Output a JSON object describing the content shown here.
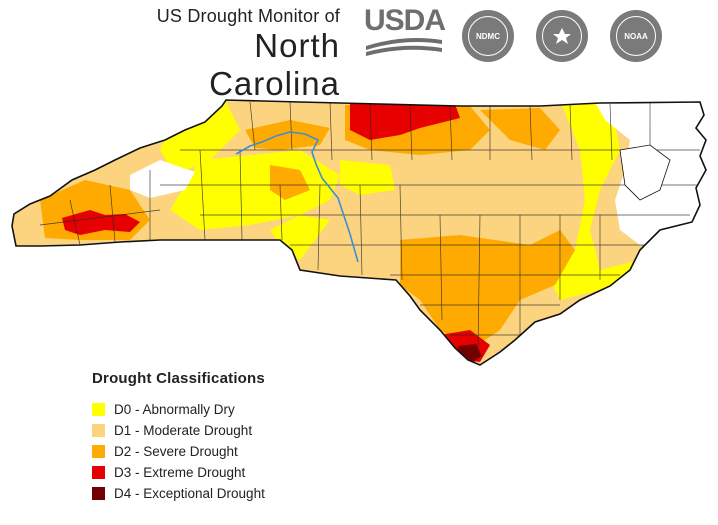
{
  "header": {
    "subtitle": "US Drought Monitor of",
    "title": "North Carolina",
    "usda_label": "USDA",
    "logos": [
      {
        "name": "ndmc-seal",
        "label": "NDMC"
      },
      {
        "name": "dept-of-commerce-seal",
        "label": ""
      },
      {
        "name": "noaa-seal",
        "label": "NOAA"
      }
    ]
  },
  "legend": {
    "title": "Drought Classifications",
    "items": [
      {
        "label": "D0 - Abnormally Dry",
        "color": "#ffff00"
      },
      {
        "label": "D1 - Moderate Drought",
        "color": "#fcd37f"
      },
      {
        "label": "D2 - Severe Drought",
        "color": "#ffaa00"
      },
      {
        "label": "D3 - Extreme Drought",
        "color": "#e60000"
      },
      {
        "label": "D4 - Exceptional Drought",
        "color": "#730000"
      }
    ]
  }
}
